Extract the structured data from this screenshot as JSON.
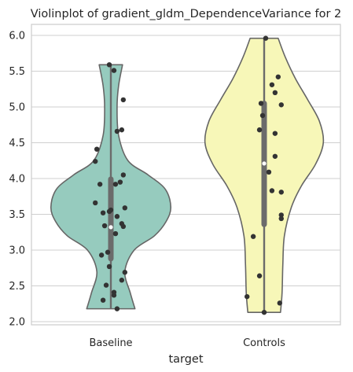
{
  "chart_data": {
    "type": "violin",
    "title": "Violinplot of gradient_gldm_DependenceVariance for 2",
    "xlabel": "target",
    "ylabel": "",
    "categories": [
      "Baseline",
      "Controls"
    ],
    "ylim": [
      1.95,
      6.18
    ],
    "yticks": [
      "2.0",
      "2.5",
      "3.0",
      "3.5",
      "4.0",
      "4.5",
      "5.0",
      "5.5",
      "6.0"
    ],
    "grid": true,
    "colors": {
      "Baseline": "#96cbbe",
      "Controls": "#f7f7b8",
      "outline": "#666666",
      "points": "#333333",
      "grid": "#cfcfcf"
    },
    "violins": [
      {
        "category": "Baseline",
        "profile": [
          [
            2.18,
            0.31
          ],
          [
            2.4,
            0.25
          ],
          [
            2.7,
            0.18
          ],
          [
            3.0,
            0.3
          ],
          [
            3.2,
            0.56
          ],
          [
            3.4,
            0.71
          ],
          [
            3.6,
            0.77
          ],
          [
            3.85,
            0.7
          ],
          [
            4.05,
            0.48
          ],
          [
            4.25,
            0.22
          ],
          [
            4.6,
            0.1
          ],
          [
            5.0,
            0.08
          ],
          [
            5.3,
            0.1
          ],
          [
            5.59,
            0.15
          ]
        ],
        "box": {
          "q1": 2.88,
          "q3": 3.99,
          "median": 3.32
        },
        "whisker": [
          2.18,
          5.59
        ],
        "points": [
          [
            -0.01,
            5.59
          ],
          [
            0.02,
            5.51
          ],
          [
            0.08,
            5.1
          ],
          [
            0.07,
            4.68
          ],
          [
            0.04,
            4.66
          ],
          [
            -0.09,
            4.41
          ],
          [
            -0.1,
            4.24
          ],
          [
            0.08,
            4.05
          ],
          [
            0.06,
            3.95
          ],
          [
            -0.07,
            3.92
          ],
          [
            0.03,
            3.92
          ],
          [
            -0.1,
            3.66
          ],
          [
            0.09,
            3.59
          ],
          [
            0.0,
            3.56
          ],
          [
            -0.01,
            3.54
          ],
          [
            -0.05,
            3.52
          ],
          [
            0.04,
            3.47
          ],
          [
            0.07,
            3.37
          ],
          [
            0.08,
            3.33
          ],
          [
            -0.04,
            3.34
          ],
          [
            0.03,
            3.23
          ],
          [
            -0.02,
            2.97
          ],
          [
            -0.06,
            2.93
          ],
          [
            -0.01,
            2.77
          ],
          [
            0.09,
            2.69
          ],
          [
            0.07,
            2.58
          ],
          [
            -0.03,
            2.51
          ],
          [
            0.02,
            2.41
          ],
          [
            0.02,
            2.37
          ],
          [
            -0.05,
            2.3
          ],
          [
            0.04,
            2.18
          ]
        ]
      },
      {
        "category": "Controls",
        "profile": [
          [
            2.13,
            0.21
          ],
          [
            2.4,
            0.23
          ],
          [
            2.8,
            0.24
          ],
          [
            3.2,
            0.26
          ],
          [
            3.6,
            0.35
          ],
          [
            3.9,
            0.48
          ],
          [
            4.2,
            0.66
          ],
          [
            4.5,
            0.76
          ],
          [
            4.8,
            0.71
          ],
          [
            5.1,
            0.56
          ],
          [
            5.4,
            0.4
          ],
          [
            5.7,
            0.27
          ],
          [
            5.96,
            0.18
          ]
        ],
        "box": {
          "q1": 3.36,
          "q3": 5.05,
          "median": 4.21
        },
        "whisker": [
          2.13,
          5.96
        ],
        "points": [
          [
            0.01,
            5.96
          ],
          [
            0.09,
            5.42
          ],
          [
            0.05,
            5.31
          ],
          [
            0.07,
            5.2
          ],
          [
            -0.02,
            5.05
          ],
          [
            0.11,
            5.03
          ],
          [
            -0.01,
            4.88
          ],
          [
            -0.03,
            4.68
          ],
          [
            0.07,
            4.63
          ],
          [
            0.07,
            4.31
          ],
          [
            0.03,
            4.09
          ],
          [
            0.05,
            3.83
          ],
          [
            0.11,
            3.81
          ],
          [
            0.11,
            3.49
          ],
          [
            0.11,
            3.44
          ],
          [
            -0.07,
            3.19
          ],
          [
            -0.03,
            2.64
          ],
          [
            -0.11,
            2.35
          ],
          [
            0.1,
            2.26
          ],
          [
            0.0,
            2.13
          ]
        ]
      }
    ]
  }
}
